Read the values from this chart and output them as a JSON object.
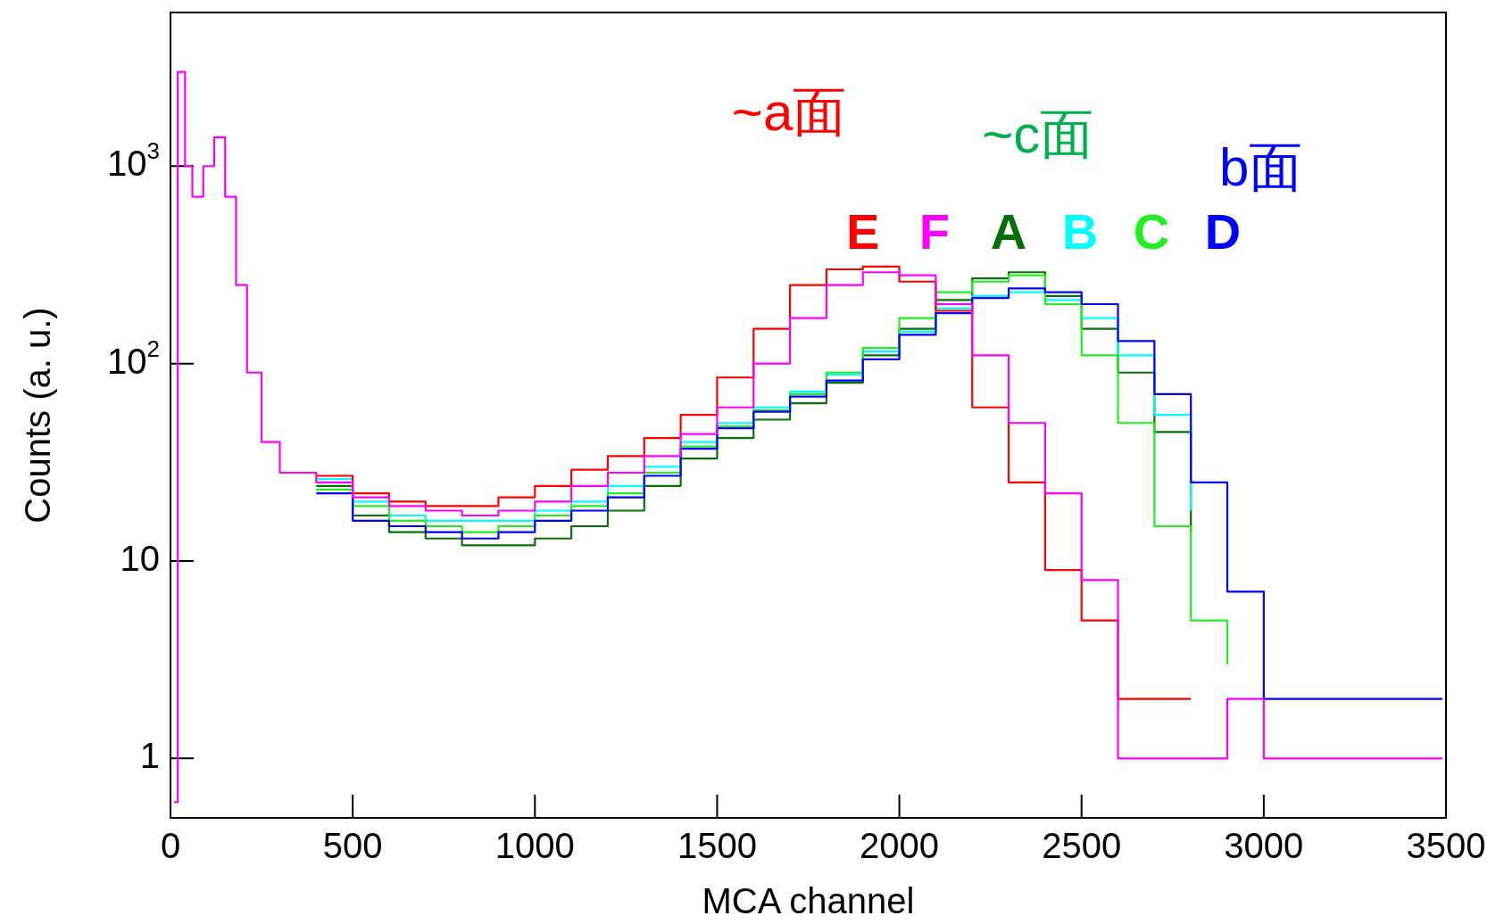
{
  "chart_data": {
    "type": "step",
    "log": "y",
    "xlabel": "MCA channel",
    "ylabel": "Counts (a. u.)",
    "xlim": [
      0,
      3500
    ],
    "xticks": [
      0,
      500,
      1000,
      1500,
      2000,
      2500,
      3000,
      3500
    ],
    "ylim": [
      0.5,
      6000
    ],
    "yticks": [
      1,
      10,
      {
        "value": 100,
        "label": "10$^{2}$"
      },
      {
        "value": 1000,
        "label": "10$^{3}$"
      }
    ],
    "x": [
      10,
      20,
      40,
      60,
      90,
      120,
      150,
      180,
      210,
      250,
      300,
      400,
      500,
      600,
      700,
      800,
      900,
      1000,
      1100,
      1200,
      1300,
      1400,
      1500,
      1600,
      1700,
      1800,
      1900,
      2000,
      2100,
      2200,
      2300,
      2400,
      2500,
      2600,
      2700,
      2800,
      2900,
      3000,
      3100,
      3200,
      3300,
      3400,
      3490
    ],
    "series": [
      {
        "name": "A",
        "color": "#0a6e0a",
        "values": [
          null,
          null,
          null,
          null,
          null,
          null,
          null,
          null,
          null,
          null,
          null,
          24,
          17,
          14,
          13,
          12,
          12,
          13,
          15,
          18,
          24,
          33,
          42,
          52,
          63,
          80,
          110,
          150,
          210,
          270,
          290,
          220,
          150,
          90,
          45,
          14,
          null,
          null,
          null,
          null,
          null,
          null,
          null
        ]
      },
      {
        "name": "B",
        "color": "#00ffff",
        "values": [
          null,
          null,
          null,
          null,
          null,
          null,
          null,
          null,
          null,
          null,
          null,
          26,
          20,
          17,
          16,
          16,
          16,
          18,
          20,
          24,
          30,
          40,
          50,
          60,
          72,
          88,
          115,
          145,
          190,
          220,
          230,
          210,
          170,
          110,
          55,
          18,
          null,
          null,
          null,
          null,
          null,
          null,
          null
        ]
      },
      {
        "name": "C",
        "color": "#22ee22",
        "values": [
          null,
          null,
          null,
          null,
          null,
          null,
          null,
          null,
          null,
          null,
          null,
          23,
          19,
          16,
          15,
          14,
          15,
          17,
          19,
          22,
          28,
          38,
          48,
          58,
          70,
          90,
          120,
          170,
          230,
          260,
          280,
          200,
          110,
          50,
          15,
          5,
          3,
          null,
          null,
          null,
          null,
          null,
          null
        ]
      },
      {
        "name": "D",
        "color": "#0000ff",
        "values": [
          null,
          null,
          null,
          null,
          null,
          null,
          null,
          null,
          null,
          null,
          null,
          22,
          16,
          15,
          14,
          13,
          14,
          16,
          18,
          21,
          27,
          37,
          47,
          57,
          68,
          82,
          105,
          140,
          180,
          215,
          240,
          230,
          200,
          130,
          70,
          25,
          7,
          2,
          2,
          2,
          2,
          2,
          2
        ]
      },
      {
        "name": "E",
        "color": "#ff0000",
        "values": [
          null,
          null,
          null,
          null,
          null,
          null,
          null,
          null,
          null,
          null,
          null,
          27,
          22,
          20,
          19,
          19,
          21,
          24,
          29,
          34,
          42,
          55,
          85,
          150,
          250,
          300,
          310,
          260,
          185,
          60,
          25,
          9,
          5,
          2,
          2,
          2,
          null,
          null,
          null,
          null,
          null,
          null,
          null
        ]
      },
      {
        "name": "F",
        "color": "#ff00ff",
        "values": [
          0.6,
          3000,
          1000,
          700,
          1000,
          1400,
          700,
          250,
          90,
          40,
          28,
          25,
          21,
          19,
          18,
          17,
          18,
          20,
          24,
          28,
          34,
          44,
          60,
          100,
          170,
          250,
          290,
          280,
          200,
          110,
          50,
          22,
          8,
          1,
          1,
          1,
          2,
          1,
          1,
          1,
          1,
          1,
          1
        ]
      }
    ],
    "annotations": [
      "~a面",
      "~c面",
      "b面"
    ]
  }
}
